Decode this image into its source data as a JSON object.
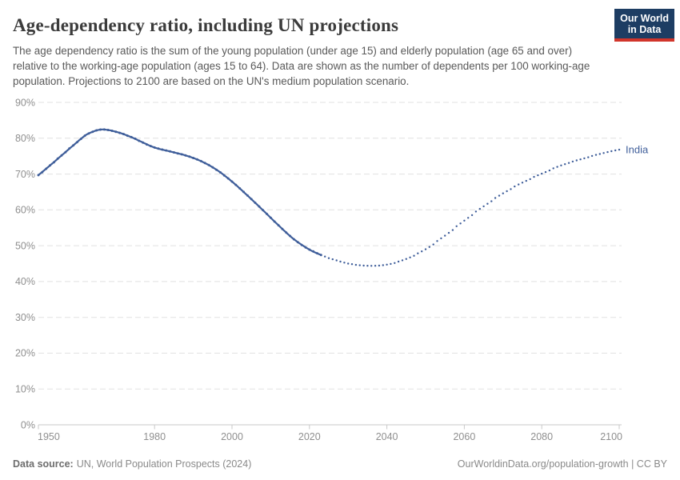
{
  "header": {
    "title": "Age-dependency ratio, including UN projections",
    "subtitle": "The age dependency ratio is the sum of the young population (under age 15) and elderly population (age 65 and over) relative to the working-age population (ages 15 to 64). Data are shown as the number of dependents per 100 working-age population. Projections to 2100 are based on the UN's medium population scenario.",
    "logo": {
      "line1": "Our World",
      "line2": "in Data",
      "bg_color": "#1d3d63",
      "accent_color": "#d1352b"
    }
  },
  "chart_data": {
    "type": "line",
    "title": "Age-dependency ratio, including UN projections",
    "entity": "India",
    "end_label": "India",
    "unit": "%",
    "xlabel": "",
    "ylabel": "",
    "xlim": [
      1950,
      2100
    ],
    "ylim": [
      0,
      90
    ],
    "grid": "horizontal dashed gridlines",
    "legend_position": "end-of-line label",
    "line_color": "#3f5e9a",
    "projection_start_year": 2023,
    "x_ticks": [
      {
        "value": 1950,
        "label": "1950"
      },
      {
        "value": 1980,
        "label": "1980"
      },
      {
        "value": 2000,
        "label": "2000"
      },
      {
        "value": 2020,
        "label": "2020"
      },
      {
        "value": 2040,
        "label": "2040"
      },
      {
        "value": 2060,
        "label": "2060"
      },
      {
        "value": 2080,
        "label": "2080"
      },
      {
        "value": 2100,
        "label": "2100"
      }
    ],
    "y_ticks": [
      {
        "value": 0,
        "label": "0%"
      },
      {
        "value": 10,
        "label": "10%"
      },
      {
        "value": 20,
        "label": "20%"
      },
      {
        "value": 30,
        "label": "30%"
      },
      {
        "value": 40,
        "label": "40%"
      },
      {
        "value": 50,
        "label": "50%"
      },
      {
        "value": 60,
        "label": "60%"
      },
      {
        "value": 70,
        "label": "70%"
      },
      {
        "value": 80,
        "label": "80%"
      },
      {
        "value": 90,
        "label": "90%"
      }
    ],
    "series": [
      {
        "name": "India — observed (solid line with yearly dots)",
        "style": "solid",
        "points": [
          [
            1950,
            69.7
          ],
          [
            1953,
            72.4
          ],
          [
            1956,
            75.2
          ],
          [
            1959,
            78.0
          ],
          [
            1962,
            80.7
          ],
          [
            1964,
            81.8
          ],
          [
            1966,
            82.4
          ],
          [
            1968,
            82.3
          ],
          [
            1971,
            81.5
          ],
          [
            1974,
            80.3
          ],
          [
            1977,
            78.8
          ],
          [
            1980,
            77.4
          ],
          [
            1984,
            76.3
          ],
          [
            1988,
            75.2
          ],
          [
            1992,
            73.6
          ],
          [
            1996,
            71.2
          ],
          [
            2000,
            67.9
          ],
          [
            2004,
            64.0
          ],
          [
            2008,
            59.9
          ],
          [
            2012,
            55.7
          ],
          [
            2016,
            51.8
          ],
          [
            2020,
            48.9
          ],
          [
            2023,
            47.4
          ]
        ]
      },
      {
        "name": "India — UN medium-scenario projection (dotted)",
        "style": "dotted",
        "points": [
          [
            2023,
            47.4
          ],
          [
            2026,
            46.2
          ],
          [
            2030,
            45.0
          ],
          [
            2035,
            44.4
          ],
          [
            2040,
            44.7
          ],
          [
            2045,
            46.3
          ],
          [
            2050,
            49.0
          ],
          [
            2055,
            52.8
          ],
          [
            2060,
            57.0
          ],
          [
            2065,
            61.0
          ],
          [
            2070,
            64.6
          ],
          [
            2075,
            67.6
          ],
          [
            2080,
            70.1
          ],
          [
            2085,
            72.4
          ],
          [
            2090,
            74.1
          ],
          [
            2095,
            75.6
          ],
          [
            2100,
            76.8
          ]
        ]
      }
    ]
  },
  "footer": {
    "source_label": "Data source:",
    "source_text": "UN, World Population Prospects (2024)",
    "url_text": "OurWorldinData.org/population-growth",
    "separator": "|",
    "license_text": "CC BY"
  }
}
